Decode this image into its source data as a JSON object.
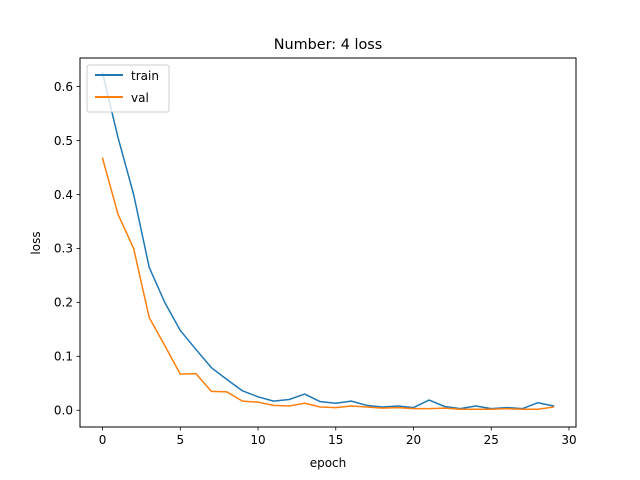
{
  "chart_data": {
    "type": "line",
    "title": "Number: 4 loss",
    "xlabel": "epoch",
    "ylabel": "loss",
    "xlim": [
      -1.45,
      30.45
    ],
    "ylim": [
      -0.031,
      0.653
    ],
    "xticks": [
      0,
      5,
      10,
      15,
      20,
      25,
      30
    ],
    "yticks": [
      0.0,
      0.1,
      0.2,
      0.3,
      0.4,
      0.5,
      0.6
    ],
    "xtick_labels": [
      "0",
      "5",
      "10",
      "15",
      "20",
      "25",
      "30"
    ],
    "ytick_labels": [
      "0.0",
      "0.1",
      "0.2",
      "0.3",
      "0.4",
      "0.5",
      "0.6"
    ],
    "grid": false,
    "legend_position": "top-left",
    "x": [
      0,
      1,
      2,
      3,
      4,
      5,
      6,
      7,
      8,
      9,
      10,
      11,
      12,
      13,
      14,
      15,
      16,
      17,
      18,
      19,
      20,
      21,
      22,
      23,
      24,
      25,
      26,
      27,
      28,
      29
    ],
    "series": [
      {
        "name": "train",
        "color": "#1f77b4",
        "values": [
          0.625,
          0.505,
          0.4,
          0.265,
          0.2,
          0.148,
          0.113,
          0.079,
          0.057,
          0.036,
          0.025,
          0.017,
          0.02,
          0.03,
          0.016,
          0.013,
          0.017,
          0.009,
          0.006,
          0.008,
          0.005,
          0.019,
          0.007,
          0.003,
          0.008,
          0.003,
          0.005,
          0.003,
          0.014,
          0.008
        ]
      },
      {
        "name": "val",
        "color": "#ff7f0e",
        "values": [
          0.467,
          0.363,
          0.3,
          0.172,
          0.12,
          0.067,
          0.068,
          0.035,
          0.034,
          0.017,
          0.015,
          0.009,
          0.008,
          0.013,
          0.006,
          0.005,
          0.008,
          0.006,
          0.004,
          0.005,
          0.003,
          0.003,
          0.004,
          0.002,
          0.002,
          0.002,
          0.003,
          0.002,
          0.002,
          0.006
        ]
      }
    ]
  }
}
